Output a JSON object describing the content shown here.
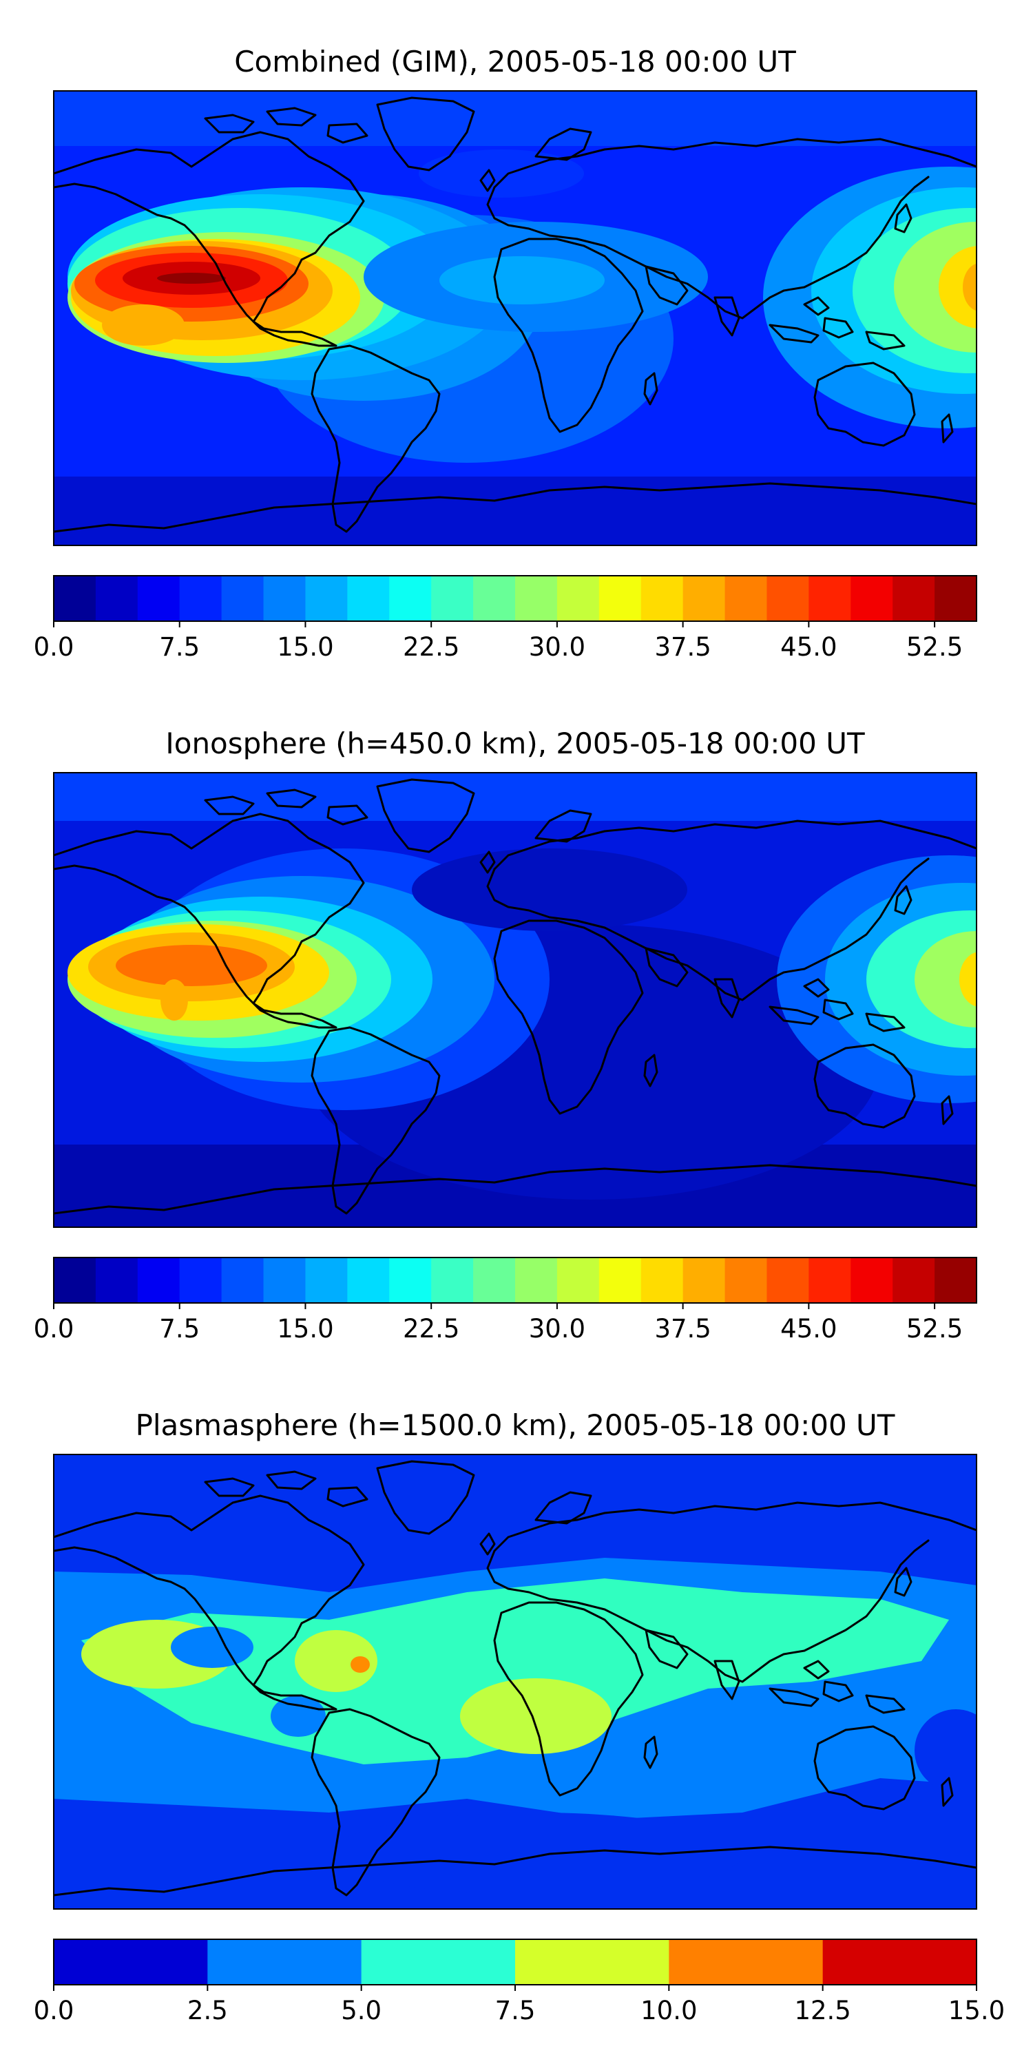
{
  "panels": [
    {
      "title": "Combined (GIM), 2005-05-18 00:00 UT",
      "colorbar": {
        "min": 0,
        "max": 55,
        "bins": 22,
        "tick_labels": [
          "0.0",
          "7.5",
          "15.0",
          "22.5",
          "30.0",
          "37.5",
          "45.0",
          "52.5"
        ],
        "tick_values": [
          0,
          7.5,
          15,
          22.5,
          30,
          37.5,
          45,
          52.5
        ]
      }
    },
    {
      "title": "Ionosphere  (h=450.0 km), 2005-05-18 00:00 UT",
      "colorbar": {
        "min": 0,
        "max": 55,
        "bins": 22,
        "tick_labels": [
          "0.0",
          "7.5",
          "15.0",
          "22.5",
          "30.0",
          "37.5",
          "45.0",
          "52.5"
        ],
        "tick_values": [
          0,
          7.5,
          15,
          22.5,
          30,
          37.5,
          45,
          52.5
        ]
      }
    },
    {
      "title": "Plasmasphere (h=1500.0 km), 2005-05-18 00:00 UT",
      "colorbar": {
        "min": 0,
        "max": 15,
        "bins": 6,
        "tick_labels": [
          "0.0",
          "2.5",
          "5.0",
          "7.5",
          "10.0",
          "12.5",
          "15.0"
        ],
        "tick_values": [
          0,
          2.5,
          5,
          7.5,
          10,
          12.5,
          15
        ]
      }
    }
  ],
  "colormap": "jet"
}
